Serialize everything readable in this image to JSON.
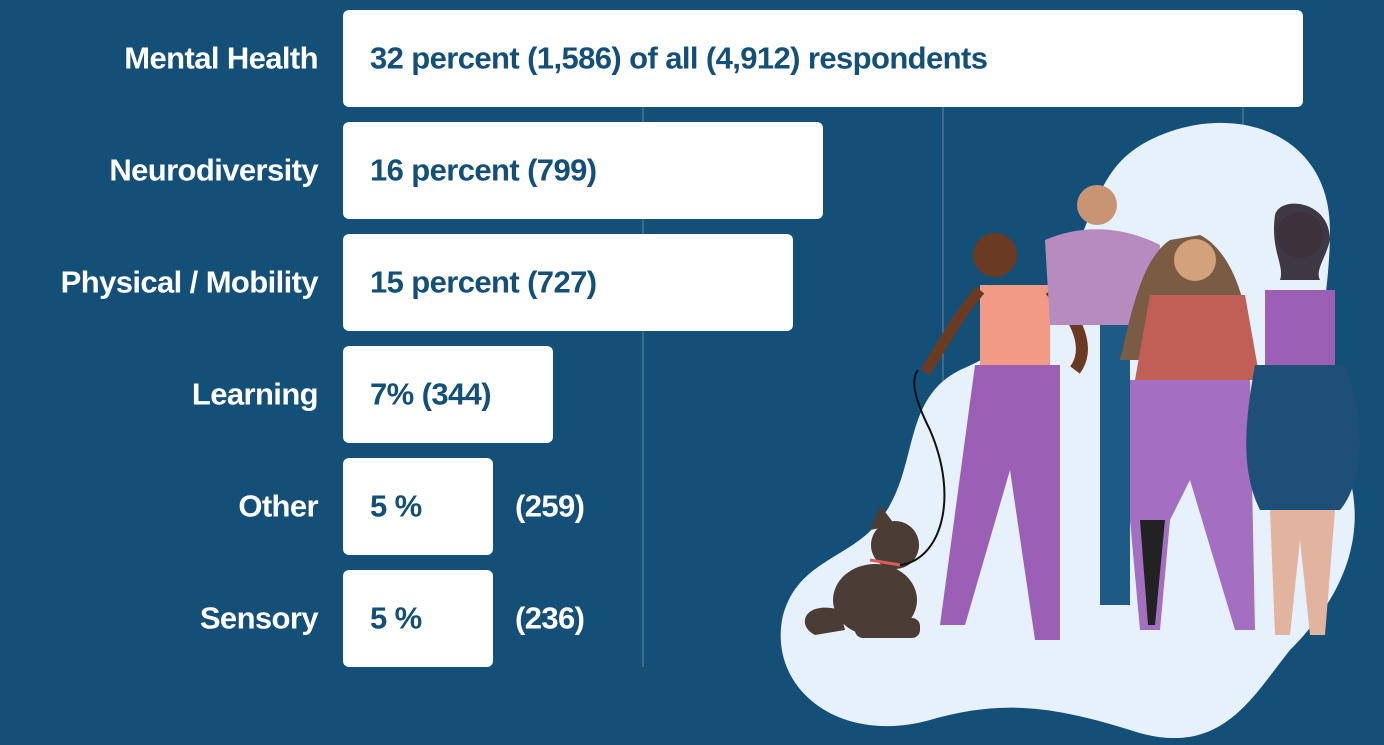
{
  "chart_data": {
    "type": "hbar",
    "categories": [
      "Mental Health",
      "Neurodiversity",
      "Physical / Mobility",
      "Learning",
      "Other",
      "Sensory"
    ],
    "values": [
      32,
      16,
      15,
      7,
      5,
      5
    ],
    "value_labels": [
      "32 percent (1,586) of all (4,912) respondents",
      "16 percent (799)",
      "15 percent (727)",
      "7% (344)",
      "5 %",
      "5 %"
    ],
    "count_labels": [
      null,
      null,
      null,
      null,
      "(259)",
      "(236)"
    ],
    "color": "#ffffff",
    "xlim": [
      0,
      34.7
    ],
    "xticks": [
      10,
      20,
      30
    ],
    "tick_labels": false,
    "grid": true
  }
}
